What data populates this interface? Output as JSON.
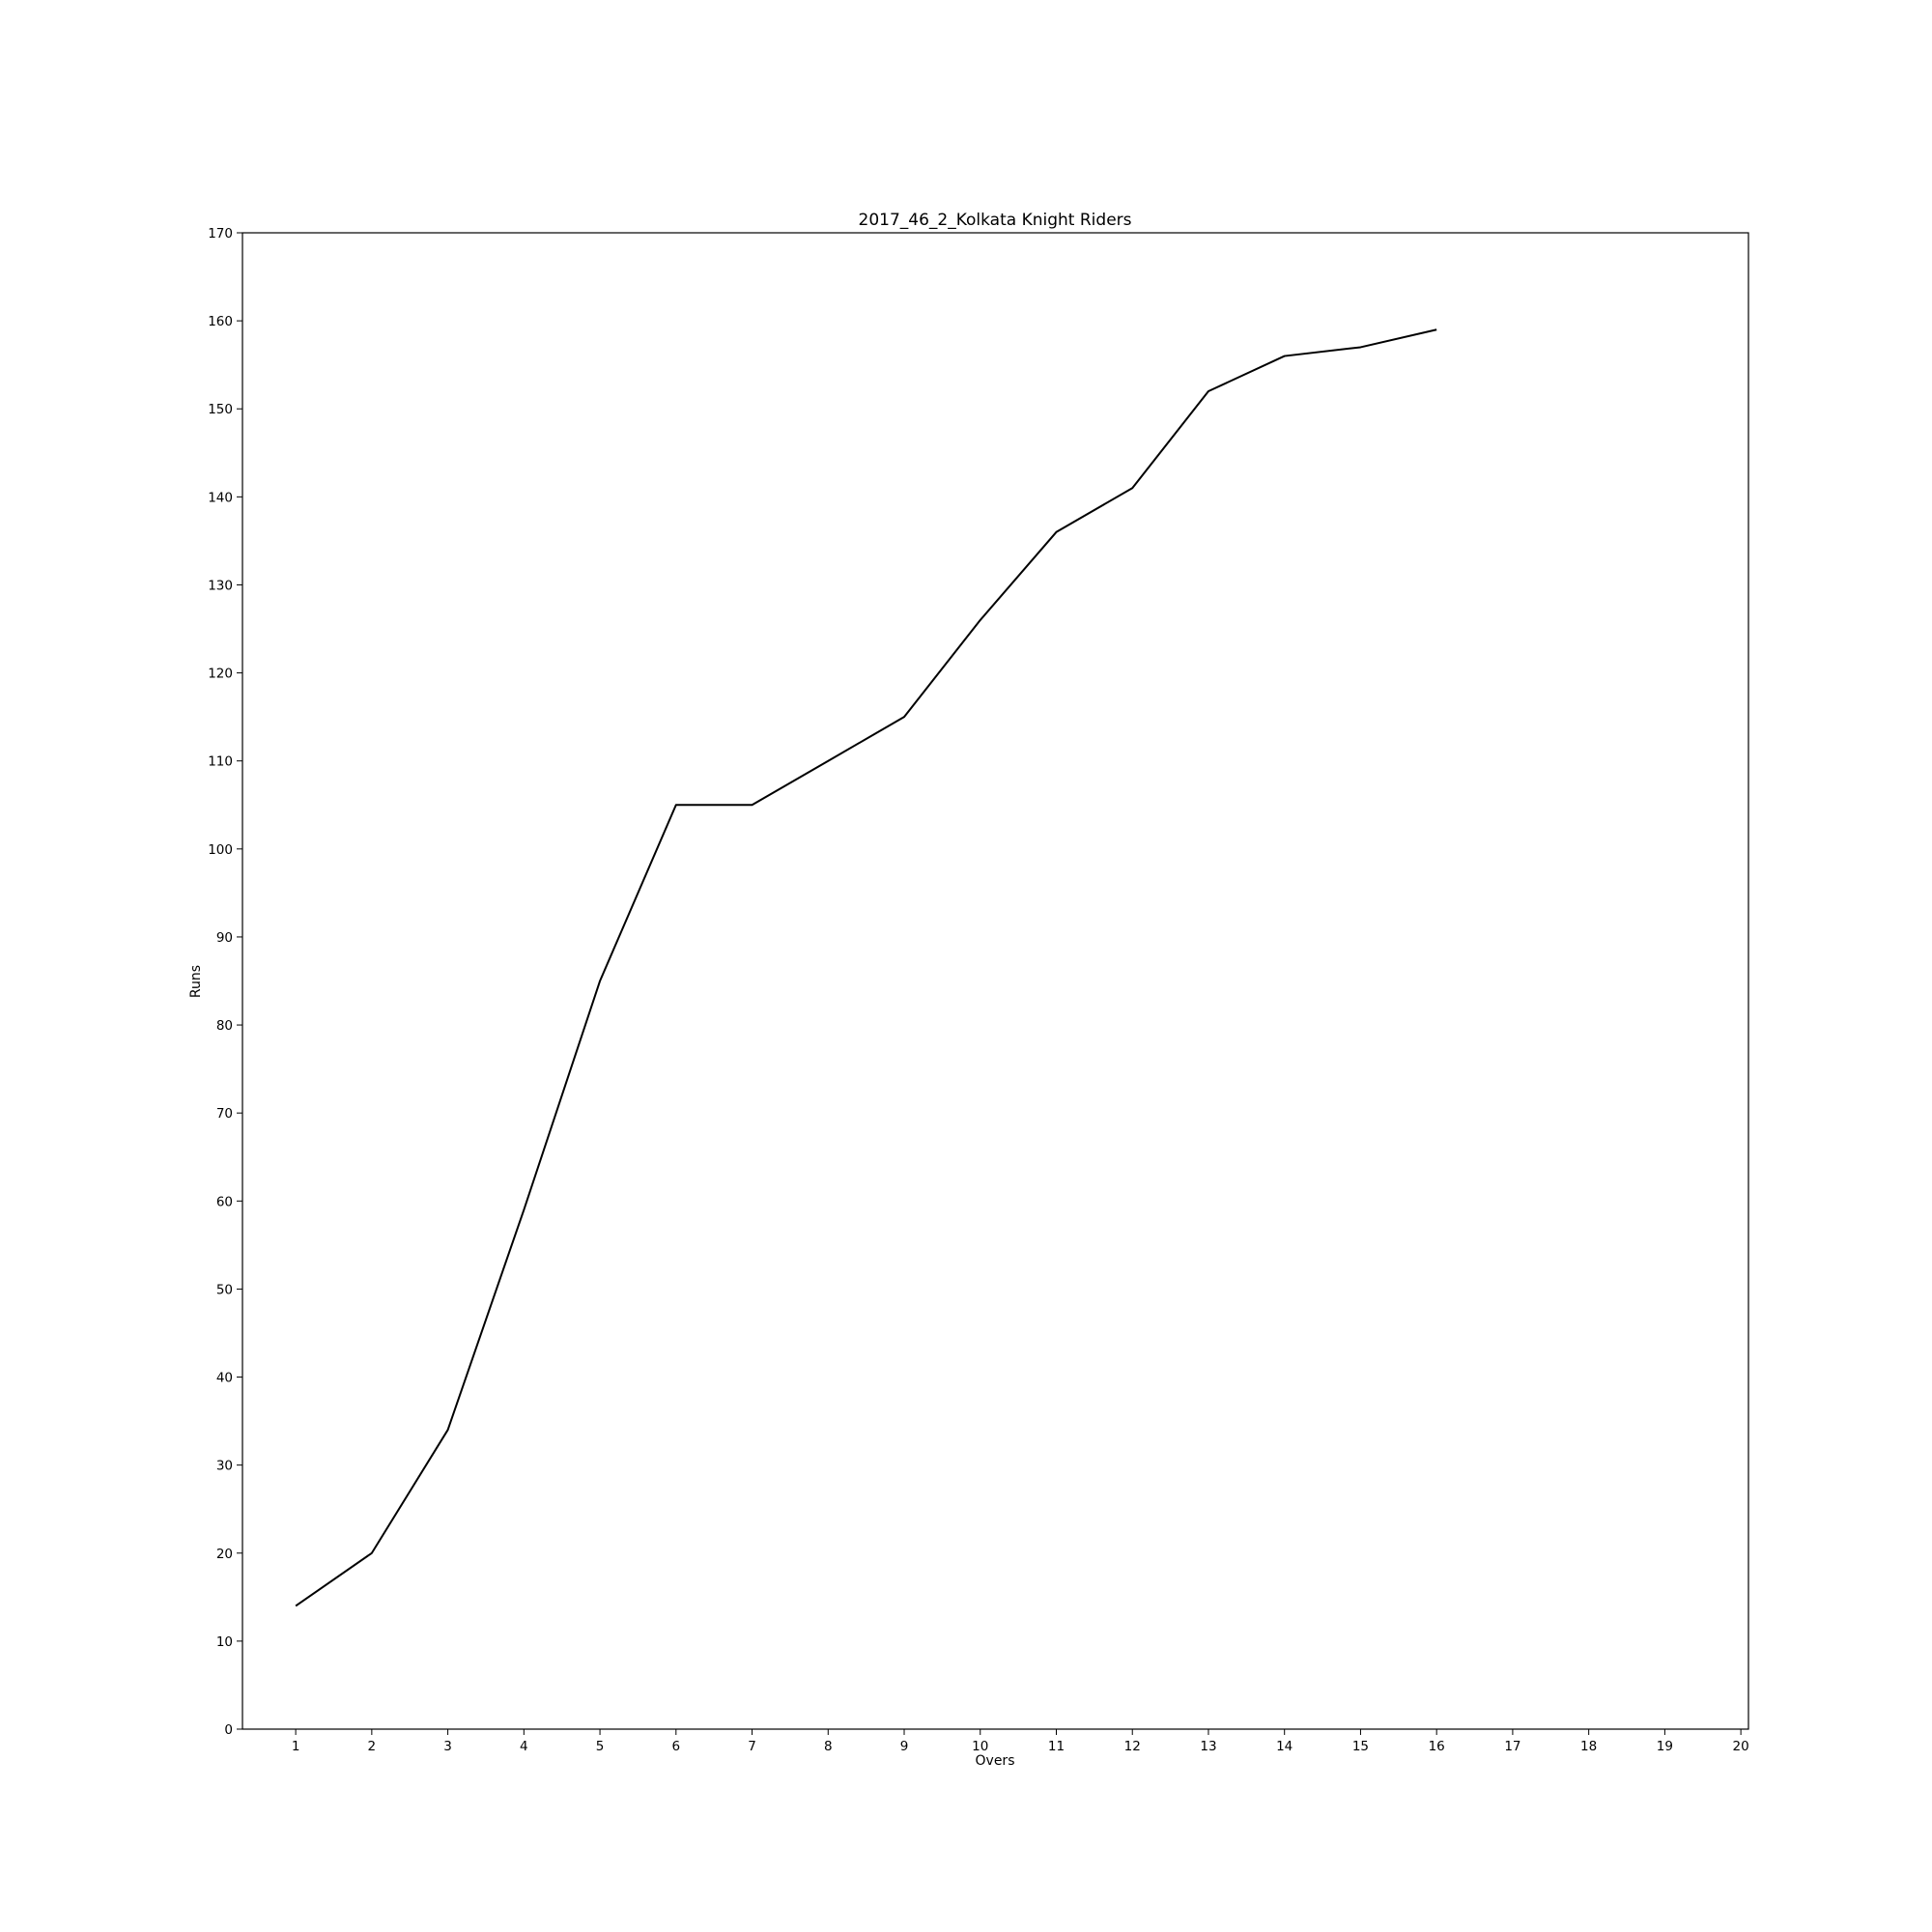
{
  "chart_data": {
    "type": "line",
    "title": "2017_46_2_Kolkata Knight Riders",
    "xlabel": "Overs",
    "ylabel": "Runs",
    "xlim": [
      0.3,
      20.1
    ],
    "ylim": [
      0,
      170
    ],
    "x_ticks": [
      1,
      2,
      3,
      4,
      5,
      6,
      7,
      8,
      9,
      10,
      11,
      12,
      13,
      14,
      15,
      16,
      17,
      18,
      19,
      20
    ],
    "y_ticks": [
      0,
      10,
      20,
      30,
      40,
      50,
      60,
      70,
      80,
      90,
      100,
      110,
      120,
      130,
      140,
      150,
      160,
      170
    ],
    "grid": false,
    "legend": "none",
    "line_color": "#000000",
    "series": [
      {
        "x": [
          1,
          2,
          3,
          4,
          5,
          6,
          7,
          8,
          9,
          10,
          11,
          12,
          13,
          14,
          15,
          16
        ],
        "values": [
          14,
          20,
          34,
          59,
          85,
          105,
          105,
          110,
          115,
          126,
          136,
          141,
          152,
          156,
          157,
          159
        ]
      }
    ]
  }
}
